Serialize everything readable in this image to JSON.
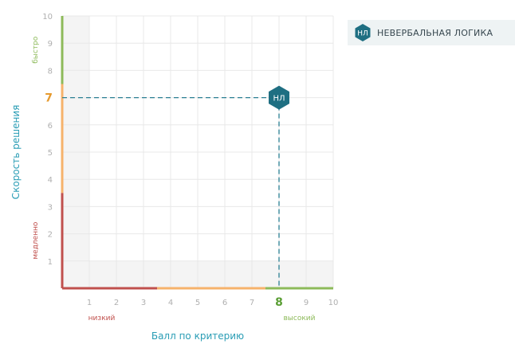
{
  "chart_data": {
    "type": "scatter",
    "x": {
      "label": "Балл по критерию",
      "range": [
        0,
        10
      ],
      "ticks": [
        "1",
        "2",
        "3",
        "4",
        "5",
        "6",
        "7",
        "8",
        "9",
        "10"
      ],
      "bands": [
        {
          "label": "низкий",
          "from": 0,
          "to": 3.5,
          "color": "#c0504d"
        },
        {
          "label": "",
          "from": 3.5,
          "to": 7.5,
          "color": "#f6b26b"
        },
        {
          "label": "высокий",
          "from": 7.5,
          "to": 10,
          "color": "#8dba5a"
        }
      ]
    },
    "y": {
      "label": "Скорость решения",
      "range": [
        0,
        10
      ],
      "ticks": [
        "1",
        "2",
        "3",
        "4",
        "5",
        "6",
        "7",
        "8",
        "9",
        "10"
      ],
      "bands": [
        {
          "label": "медленно",
          "from": 0,
          "to": 3.5,
          "color": "#c0504d"
        },
        {
          "label": "",
          "from": 3.5,
          "to": 7.5,
          "color": "#f6b26b"
        },
        {
          "label": "быстро",
          "from": 7.5,
          "to": 10,
          "color": "#8dba5a"
        }
      ]
    },
    "points": [
      {
        "name": "НЕВЕРБАЛЬНАЯ ЛОГИКА",
        "marker": "НЛ",
        "x": 8,
        "y": 7,
        "x_label": "8",
        "y_label": "7",
        "x_label_color": "#5a9e34",
        "y_label_color": "#e69a2e"
      }
    ],
    "legend": {
      "position": "top-right",
      "entries": [
        {
          "marker": "НЛ",
          "label": "НЕВЕРБАЛЬНАЯ ЛОГИКА"
        }
      ]
    },
    "grid": true,
    "colors": {
      "marker": "#1f6f82",
      "guide": "#2a7f93",
      "axis_label": "#2a9db5",
      "tick": "#b0b0b0",
      "grid": "#e8e8e8",
      "shade": "#f4f4f4"
    }
  }
}
